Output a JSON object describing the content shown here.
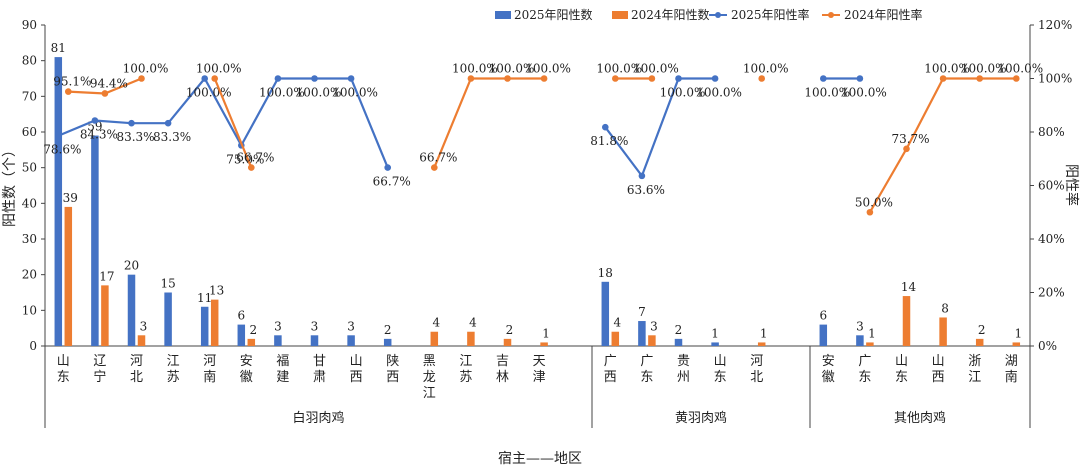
{
  "chart_data": {
    "type": "bar",
    "xlabel": "宿主——地区",
    "ylabel": "阳性数（个）",
    "y2label": "阳性率",
    "ylim": [
      0,
      90
    ],
    "yticks": [
      0,
      10,
      20,
      30,
      40,
      50,
      60,
      70,
      80,
      90
    ],
    "y2lim": [
      0,
      120
    ],
    "y2ticks": [
      "0%",
      "20%",
      "40%",
      "60%",
      "80%",
      "100%",
      "120%"
    ],
    "legend_position": "top-right",
    "grid": false,
    "colors": {
      "s2025": "#4472C4",
      "s2024": "#ED7D31"
    },
    "groups": [
      {
        "name": "白羽肉鸡",
        "categories": [
          "山东",
          "辽宁",
          "河北",
          "江苏",
          "河南",
          "安徽",
          "福建",
          "甘肃",
          "山西",
          "陕西",
          "黑龙江",
          "江苏",
          "吉林",
          "天津"
        ],
        "count2025": [
          81,
          59,
          20,
          15,
          11,
          6,
          3,
          3,
          3,
          2,
          null,
          null,
          null,
          null
        ],
        "count2024": [
          39,
          17,
          3,
          null,
          13,
          2,
          null,
          null,
          null,
          null,
          4,
          4,
          2,
          1
        ],
        "rate2025": [
          78.6,
          84.3,
          83.3,
          83.3,
          100.0,
          75.0,
          100.0,
          100.0,
          100.0,
          66.7,
          null,
          null,
          null,
          null
        ],
        "rate2024": [
          95.1,
          94.4,
          100.0,
          null,
          100.0,
          66.7,
          null,
          null,
          null,
          null,
          66.7,
          100.0,
          100.0,
          100.0
        ]
      },
      {
        "name": "黄羽肉鸡",
        "categories": [
          "广西",
          "广东",
          "贵州",
          "山东",
          "河北"
        ],
        "count2025": [
          18,
          7,
          2,
          1,
          null
        ],
        "count2024": [
          4,
          3,
          null,
          null,
          1
        ],
        "rate2025": [
          81.8,
          63.6,
          100.0,
          100.0,
          null
        ],
        "rate2024": [
          100.0,
          100.0,
          null,
          null,
          100.0
        ]
      },
      {
        "name": "其他肉鸡",
        "categories": [
          "安徽",
          "广东",
          "山东",
          "山西",
          "浙江",
          "湖南"
        ],
        "count2025": [
          6,
          3,
          null,
          null,
          null,
          null
        ],
        "count2024": [
          null,
          1,
          14,
          8,
          2,
          1
        ],
        "rate2025": [
          100.0,
          100.0,
          null,
          null,
          null,
          null
        ],
        "rate2024": [
          null,
          50.0,
          73.7,
          100.0,
          100.0,
          100.0
        ]
      }
    ],
    "series": [
      {
        "name": "2025年阳性数",
        "kind": "bar"
      },
      {
        "name": "2024年阳性数",
        "kind": "bar"
      },
      {
        "name": "2025年阳性率",
        "kind": "line"
      },
      {
        "name": "2024年阳性率",
        "kind": "line"
      }
    ]
  }
}
